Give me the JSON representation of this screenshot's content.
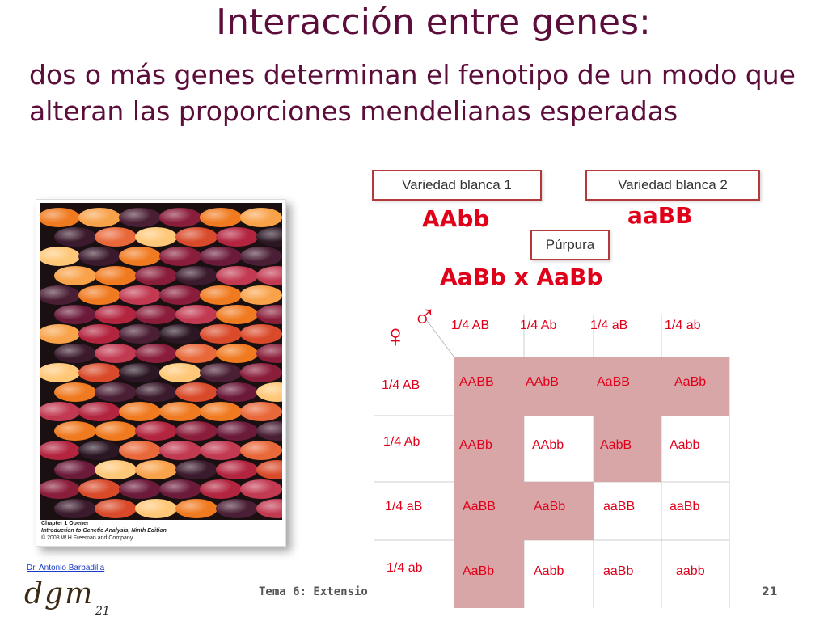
{
  "slide": {
    "title": "Interacción entre genes:",
    "subtitle": "dos o más genes determinan el fenotipo de un modo que alteran las proporciones mendelianas esperadas"
  },
  "parents": {
    "box1_label": "Variedad blanca 1",
    "box1_genotype": "AAbb",
    "box2_label": "Variedad blanca 2",
    "box2_genotype": "aaBB",
    "f1_label": "Púrpura",
    "cross": "AaBb x AaBb"
  },
  "photo_caption": {
    "line1": "Chapter 1 Opener",
    "line2": "Introduction to Genetic Analysis, Ninth Edition",
    "line3": "© 2008 W.H.Freeman and Company"
  },
  "punnett": {
    "male_symbol": "♂",
    "female_symbol": "♀",
    "col_headers": [
      "1/4 AB",
      "1/4 Ab",
      "1/4 aB",
      "1/4 ab"
    ],
    "row_headers": [
      "1/4 AB",
      "1/4 Ab",
      "1/4 aB",
      "1/4 ab"
    ],
    "rows": [
      [
        "AABB",
        "AAbB",
        "AaBB",
        "AaBb"
      ],
      [
        "AABb",
        "AAbb",
        "AabB",
        "Aabb"
      ],
      [
        "AaBB",
        "AaBb",
        "aaBB",
        "aaBb"
      ],
      [
        "AaBb",
        "Aabb",
        "aaBb",
        "aabb"
      ]
    ],
    "purple_cells": [
      [
        0,
        0
      ],
      [
        0,
        1
      ],
      [
        0,
        2
      ],
      [
        0,
        3
      ],
      [
        1,
        0
      ],
      [
        1,
        2
      ],
      [
        2,
        0
      ],
      [
        2,
        1
      ],
      [
        3,
        0
      ]
    ],
    "purple_color": "#d9a6a8",
    "text_color": "#e0001a"
  },
  "footer": {
    "course": "Tema 6: Extensio",
    "page": "21",
    "author": "Dr. Antonio Barbadilla",
    "logo": "dgm",
    "logo_number": "21"
  }
}
